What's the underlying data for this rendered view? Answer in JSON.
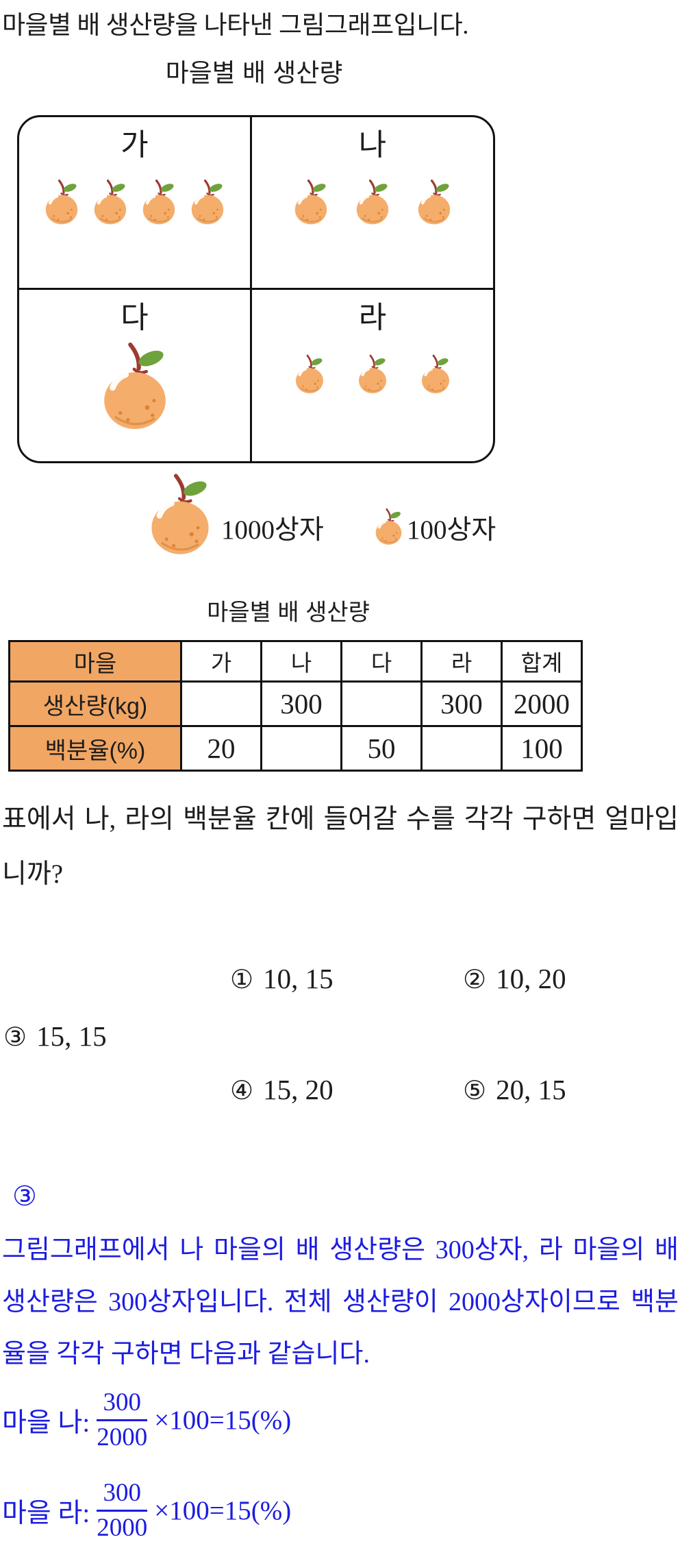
{
  "colors": {
    "text": "#1d1d1d",
    "accent_blue": "#1c1ce0",
    "table_header_bg": "#f1a663",
    "table_border": "#111111",
    "pear_body": "#f4ad6b",
    "pear_dots": "#e0832d",
    "pear_shade": "#db8a45",
    "pear_stem": "#9d3b33",
    "pear_leaf": "#6fa23c"
  },
  "intro": "마을별 배 생산량을 나타낸 그림그래프입니다.",
  "chart_data": {
    "type": "pictograph",
    "title": "마을별 배 생산량",
    "legend": [
      {
        "icon": "large-pear-icon",
        "label": "1000상자",
        "value": 1000
      },
      {
        "icon": "small-pear-icon",
        "label": "100상자",
        "value": 100
      }
    ],
    "cells": [
      {
        "name": "가",
        "large_icons": 0,
        "small_icons": 4,
        "boxes": 400
      },
      {
        "name": "나",
        "large_icons": 0,
        "small_icons": 3,
        "boxes": 300
      },
      {
        "name": "다",
        "large_icons": 1,
        "small_icons": 0,
        "boxes": 1000
      },
      {
        "name": "라",
        "large_icons": 0,
        "small_icons": 3,
        "boxes": 300
      }
    ]
  },
  "table": {
    "title": "마을별 배 생산량",
    "columns": [
      "마을",
      "가",
      "나",
      "다",
      "라",
      "합계"
    ],
    "rows": [
      {
        "label": "생산량(kg)",
        "cells": [
          "",
          "300",
          "",
          "300",
          "2000"
        ]
      },
      {
        "label": "백분율(%)",
        "cells": [
          "20",
          "",
          "50",
          "",
          "100"
        ]
      }
    ]
  },
  "question": "표에서 나, 라의 백분율 칸에 들어갈 수를 각각 구하면 얼마입니까?",
  "choices": [
    {
      "marker": "①",
      "text": "10, 15"
    },
    {
      "marker": "②",
      "text": "10, 20"
    },
    {
      "marker": "③",
      "text": "15, 15"
    },
    {
      "marker": "④",
      "text": "15, 20"
    },
    {
      "marker": "⑤",
      "text": "20, 15"
    }
  ],
  "answer": "③",
  "explanation": {
    "text": "그림그래프에서 나 마을의 배 생산량은 300상자, 라 마을의 배 생산량은 300상자입니다. 전체 생산량이 2000상자이므로 백분율을 각각 구하면 다음과 같습니다.",
    "formulas": [
      {
        "prefix": "마을 나:",
        "numerator": "300",
        "denominator": "2000",
        "rest": "×100=15(%)"
      },
      {
        "prefix": "마을 라:",
        "numerator": "300",
        "denominator": "2000",
        "rest": "×100=15(%)"
      }
    ]
  }
}
